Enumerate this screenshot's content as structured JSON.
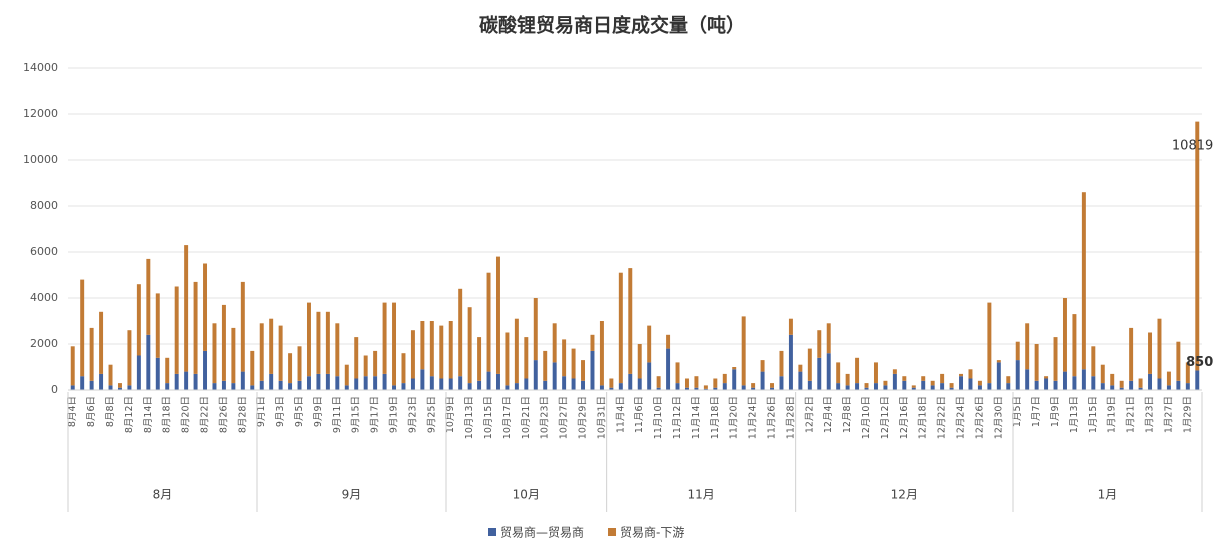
{
  "chart_data": {
    "type": "stacked_bar",
    "title": "碳酸锂贸易商日度成交量（吨）",
    "categories": [
      "8月4日",
      null,
      "8月6日",
      null,
      "8月8日",
      null,
      "8月12日",
      null,
      "8月14日",
      null,
      "8月18日",
      null,
      "8月20日",
      null,
      "8月22日",
      null,
      "8月26日",
      null,
      "8月28日",
      null,
      "9月1日",
      null,
      "9月3日",
      null,
      "9月5日",
      null,
      "9月9日",
      null,
      "9月11日",
      null,
      "9月15日",
      null,
      "9月17日",
      null,
      "9月19日",
      null,
      "9月23日",
      null,
      "9月25日",
      null,
      "10月9日",
      null,
      "10月13日",
      null,
      "10月15日",
      null,
      "10月17日",
      null,
      "10月21日",
      null,
      "10月23日",
      null,
      "10月27日",
      null,
      "10月29日",
      null,
      "10月31日",
      null,
      "11月4日",
      null,
      "11月6日",
      null,
      "11月10日",
      null,
      "11月12日",
      null,
      "11月14日",
      null,
      "11月18日",
      null,
      "11月20日",
      null,
      "11月24日",
      null,
      "11月26日",
      null,
      "11月28日",
      null,
      "12月2日",
      null,
      "12月4日",
      null,
      "12月8日",
      null,
      "12月10日",
      null,
      "12月12日",
      null,
      "12月16日",
      null,
      "12月18日",
      null,
      "12月22日",
      null,
      "12月24日",
      null,
      "12月26日",
      null,
      "12月30日",
      null,
      "1月5日",
      null,
      "1月7日",
      null,
      "1月9日",
      null,
      "1月13日",
      null,
      "1月15日",
      null,
      "1月19日",
      null,
      "1月21日",
      null,
      "1月23日",
      null,
      "1月27日",
      null,
      "1月29日",
      null
    ],
    "groups": [
      {
        "name": "8月",
        "size": 20
      },
      {
        "name": "9月",
        "size": 20
      },
      {
        "name": "10月",
        "size": 17
      },
      {
        "name": "11月",
        "size": 20
      },
      {
        "name": "12月",
        "size": 23
      },
      {
        "name": "1月",
        "size": 20
      }
    ],
    "series": [
      {
        "name": "贸易商—贸易商",
        "color": "#41619e",
        "values": [
          200,
          600,
          400,
          700,
          200,
          100,
          200,
          1500,
          2400,
          1400,
          300,
          700,
          800,
          700,
          1700,
          300,
          400,
          300,
          800,
          200,
          400,
          700,
          400,
          300,
          400,
          600,
          700,
          700,
          600,
          200,
          500,
          600,
          600,
          700,
          200,
          300,
          500,
          900,
          600,
          500,
          500,
          600,
          300,
          400,
          800,
          700,
          200,
          300,
          500,
          1300,
          400,
          1200,
          600,
          500,
          400,
          1700,
          200,
          100,
          300,
          700,
          500,
          1200,
          100,
          1800,
          300,
          100,
          100,
          50,
          100,
          300,
          900,
          200,
          100,
          800,
          100,
          600,
          2400,
          800,
          400,
          1400,
          1600,
          300,
          200,
          300,
          100,
          300,
          200,
          700,
          400,
          100,
          400,
          200,
          300,
          100,
          600,
          500,
          200,
          300,
          1200,
          300,
          1300,
          900,
          400,
          500,
          400,
          800,
          600,
          900,
          600,
          300,
          200,
          100,
          400,
          100,
          700,
          500,
          200,
          400,
          300,
          850
        ]
      },
      {
        "name": "贸易商-下游",
        "color": "#c27b35",
        "values": [
          1700,
          4200,
          2300,
          2700,
          900,
          200,
          2400,
          3100,
          3300,
          2800,
          1100,
          3800,
          5500,
          4000,
          3800,
          2600,
          3300,
          2400,
          3900,
          1500,
          2500,
          2400,
          2400,
          1300,
          1500,
          3200,
          2700,
          2700,
          2300,
          900,
          1800,
          900,
          1100,
          3100,
          3600,
          1300,
          2100,
          2100,
          2400,
          2300,
          2500,
          3800,
          3300,
          1900,
          4300,
          5100,
          2300,
          2800,
          1800,
          2700,
          1300,
          1700,
          1600,
          1300,
          900,
          700,
          2800,
          400,
          4800,
          4600,
          1500,
          1600,
          500,
          600,
          900,
          400,
          500,
          150,
          400,
          400,
          100,
          3000,
          200,
          500,
          200,
          1100,
          700,
          300,
          1400,
          1200,
          1300,
          900,
          500,
          1100,
          200,
          900,
          200,
          200,
          200,
          100,
          200,
          200,
          400,
          200,
          100,
          400,
          200,
          3500,
          100,
          300,
          800,
          2000,
          1600,
          100,
          1900,
          3200,
          2700,
          7700,
          1300,
          800,
          500,
          300,
          2300,
          400,
          1800,
          2600,
          600,
          1700,
          900,
          10819
        ]
      }
    ],
    "ylim": [
      0,
      14000
    ],
    "yticks": [
      0,
      2000,
      4000,
      6000,
      8000,
      10000,
      12000,
      14000
    ],
    "grid": true,
    "legend": "bottom"
  }
}
